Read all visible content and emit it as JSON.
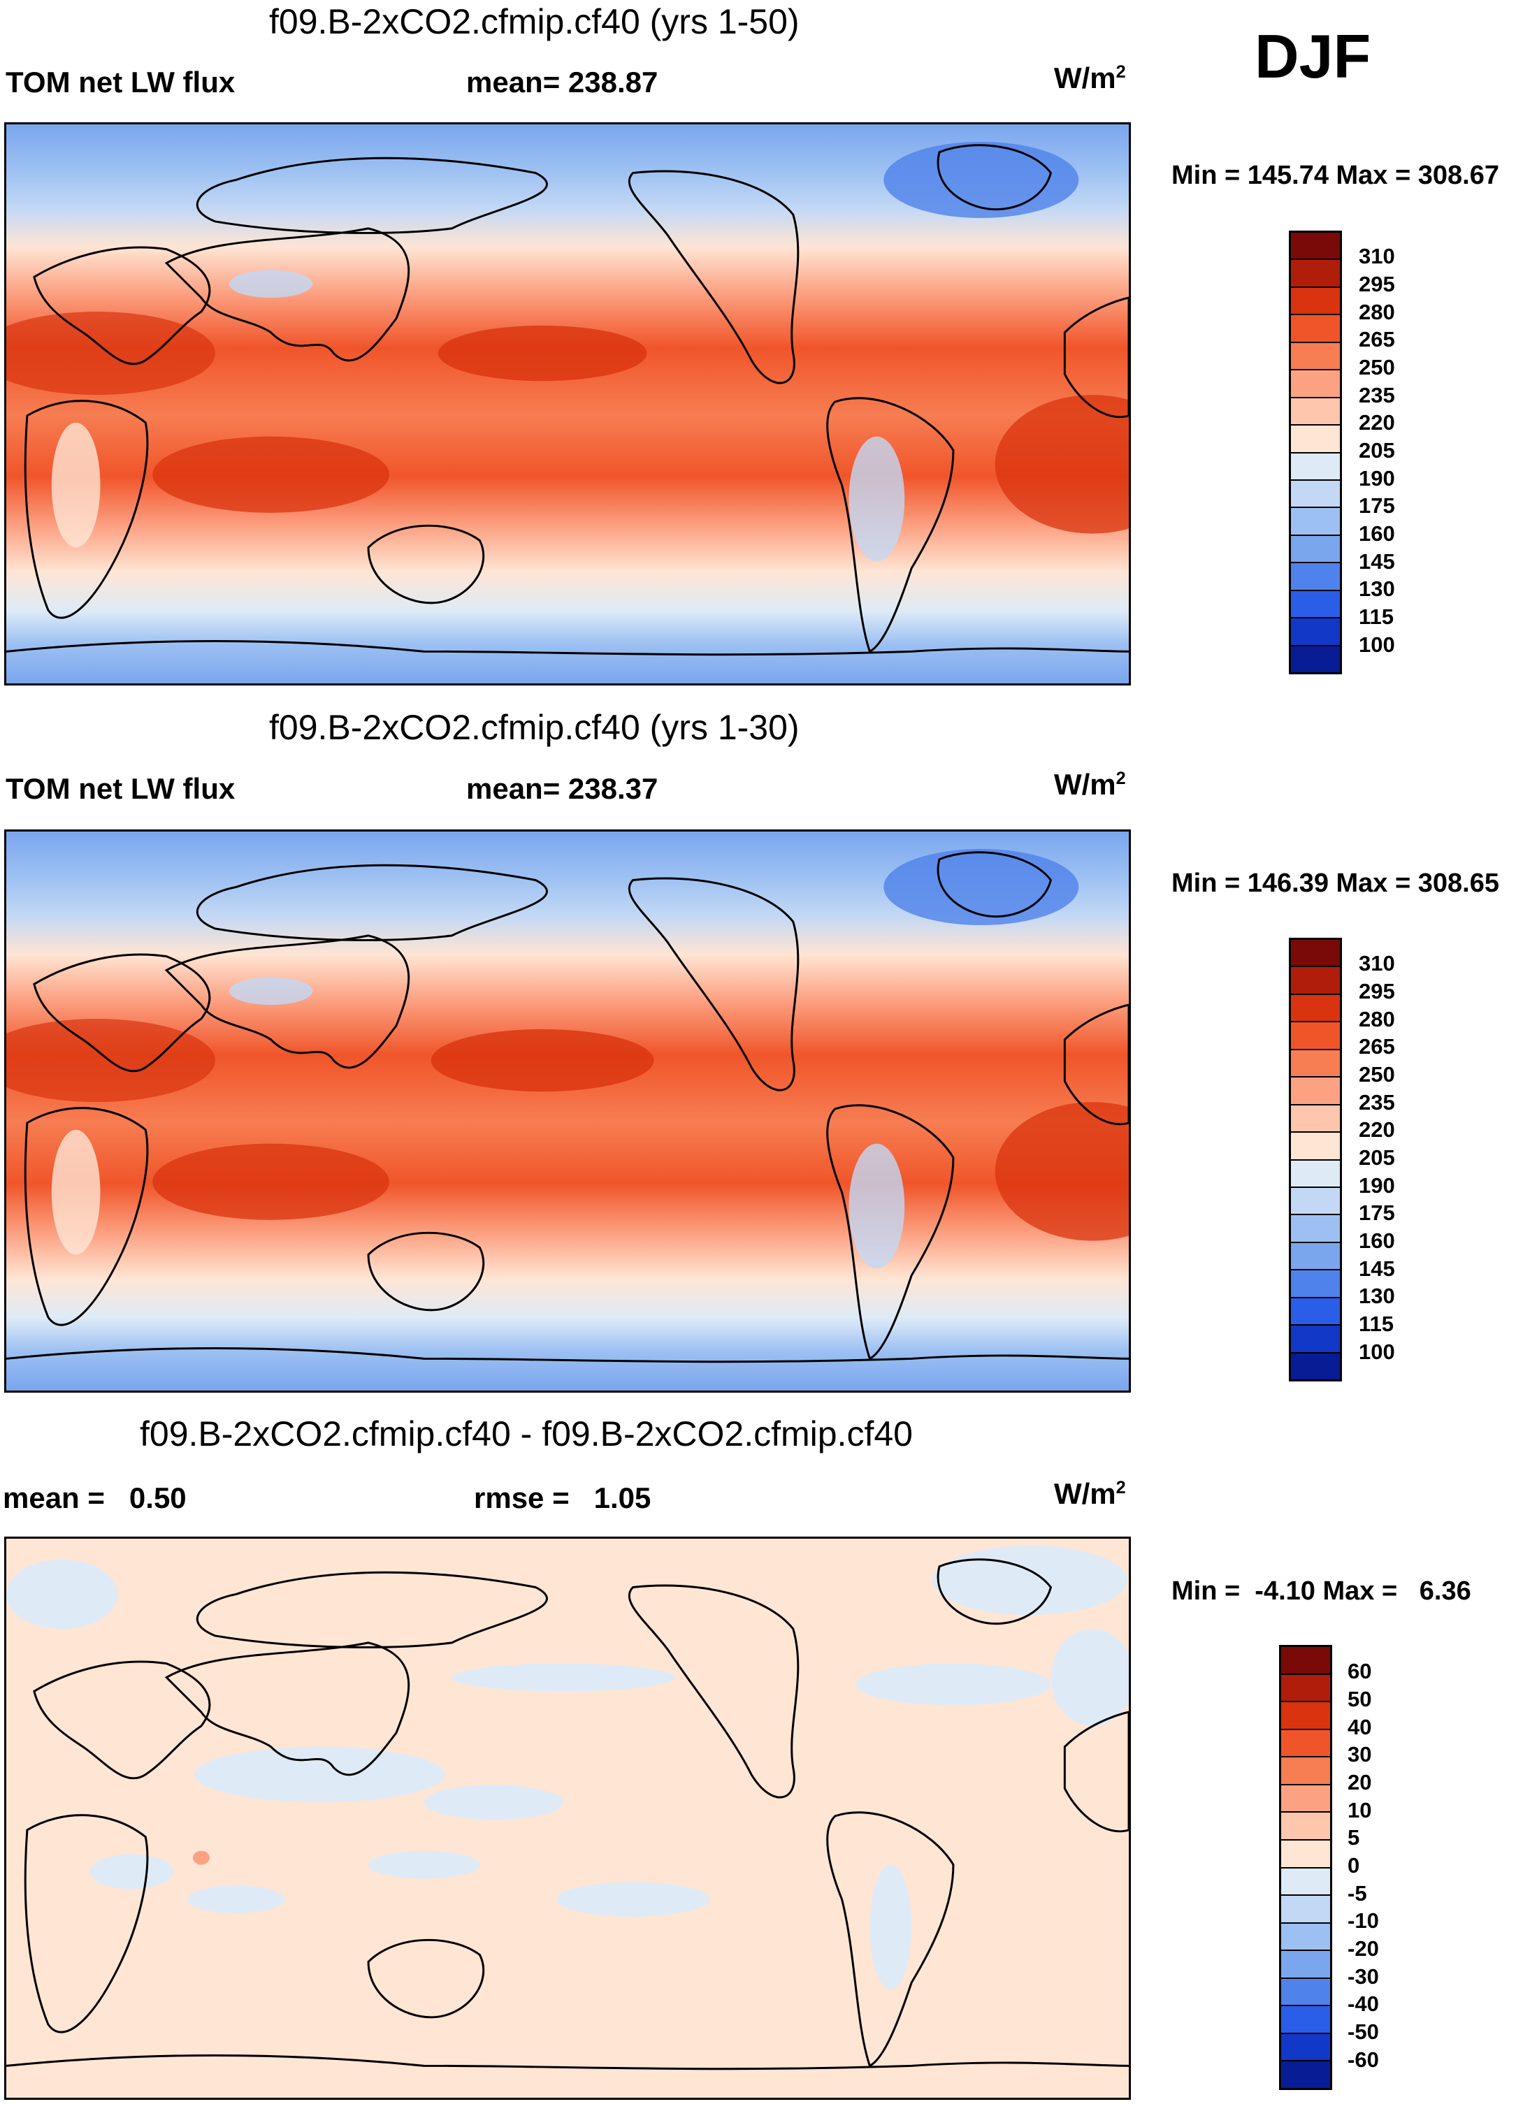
{
  "season": "DJF",
  "panels": [
    {
      "title": "f09.B-2xCO2.cfmip.cf40 (yrs 1-50)",
      "left_label": "TOM net LW flux",
      "center_label": "mean= 238.87",
      "units": "W/m",
      "units_sup": "2",
      "minmax": "Min = 145.74 Max = 308.67",
      "colorbar_labels": [
        "310",
        "295",
        "280",
        "265",
        "250",
        "235",
        "220",
        "205",
        "190",
        "175",
        "160",
        "145",
        "130",
        "115",
        "100"
      ]
    },
    {
      "title": "f09.B-2xCO2.cfmip.cf40 (yrs 1-30)",
      "left_label": "TOM net LW flux",
      "center_label": "mean= 238.37",
      "units": "W/m",
      "units_sup": "2",
      "minmax": "Min = 146.39 Max = 308.65",
      "colorbar_labels": [
        "310",
        "295",
        "280",
        "265",
        "250",
        "235",
        "220",
        "205",
        "190",
        "175",
        "160",
        "145",
        "130",
        "115",
        "100"
      ]
    },
    {
      "title": "f09.B-2xCO2.cfmip.cf40 - f09.B-2xCO2.cfmip.cf40",
      "left_label": "mean =   0.50",
      "center_label": "rmse =   1.05",
      "units": "W/m",
      "units_sup": "2",
      "minmax": "Min =  -4.10 Max =   6.36",
      "colorbar_labels": [
        "60",
        "50",
        "40",
        "30",
        "20",
        "10",
        "5",
        "0",
        "-5",
        "-10",
        "-20",
        "-30",
        "-40",
        "-50",
        "-60"
      ]
    }
  ],
  "colors": {
    "scale": [
      "#7a0a07",
      "#b01e0b",
      "#d9340f",
      "#f0552a",
      "#f77d52",
      "#fca283",
      "#fdc6ad",
      "#fee5d4",
      "#deebf7",
      "#c2d8f5",
      "#9cc0f2",
      "#7aa6ee",
      "#4f82ea",
      "#2a5ee8",
      "#1238c8",
      "#081c96",
      "#040a6e"
    ]
  }
}
